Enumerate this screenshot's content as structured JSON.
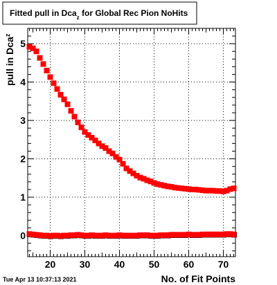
{
  "title": {
    "prefix": "Fitted pull in Dca",
    "subscript": "z",
    "suffix": " for Global Rec Pion NoHits"
  },
  "timestamp": "Tue Apr 13 10:37:13 2021",
  "chart_data": {
    "type": "scatter",
    "title": "Fitted pull in Dca_z for Global Rec Pion NoHits",
    "xlabel": "No. of Fit Points",
    "ylabel": {
      "prefix": "pull in Dca",
      "subscript": "z"
    },
    "xlim": [
      13.5,
      73.5
    ],
    "ylim": [
      -0.55,
      5.4
    ],
    "x_ticks": [
      20,
      30,
      40,
      50,
      60,
      70
    ],
    "y_ticks": [
      0,
      1,
      2,
      3,
      4,
      5
    ],
    "grid": true,
    "colors": {
      "sigma": "#ff0000",
      "mean": "#ff0000",
      "mean_bg": "#000000"
    },
    "series": [
      {
        "x": [
          14,
          15,
          16,
          17,
          18,
          19,
          20,
          21,
          22,
          23,
          24,
          25,
          26,
          27,
          28,
          29,
          30,
          31,
          32,
          33,
          34,
          35,
          36,
          37,
          38,
          39,
          40,
          41,
          42,
          43,
          44,
          45,
          46,
          47,
          48,
          49,
          50,
          51,
          52,
          53,
          54,
          55,
          56,
          57,
          58,
          59,
          60,
          61,
          62,
          63,
          64,
          65,
          66,
          67,
          68,
          69,
          70,
          71,
          72,
          73
        ],
        "values": [
          4.92,
          4.88,
          4.8,
          4.63,
          4.47,
          4.3,
          4.13,
          3.97,
          3.82,
          3.67,
          3.55,
          3.42,
          3.25,
          3.1,
          2.95,
          2.82,
          2.7,
          2.62,
          2.55,
          2.48,
          2.4,
          2.33,
          2.28,
          2.2,
          2.14,
          2.05,
          1.98,
          1.87,
          1.75,
          1.68,
          1.62,
          1.56,
          1.51,
          1.48,
          1.44,
          1.41,
          1.37,
          1.34,
          1.32,
          1.3,
          1.28,
          1.27,
          1.25,
          1.24,
          1.23,
          1.22,
          1.21,
          1.2,
          1.2,
          1.19,
          1.18,
          1.17,
          1.17,
          1.17,
          1.16,
          1.16,
          1.15,
          1.17,
          1.21,
          1.23
        ]
      },
      {
        "x": [
          14,
          15,
          16,
          17,
          18,
          19,
          20,
          21,
          22,
          23,
          24,
          25,
          26,
          27,
          28,
          29,
          30,
          31,
          32,
          33,
          34,
          35,
          36,
          37,
          38,
          39,
          40,
          41,
          42,
          43,
          44,
          45,
          46,
          47,
          48,
          49,
          50,
          51,
          52,
          53,
          54,
          55,
          56,
          57,
          58,
          59,
          60,
          61,
          62,
          63,
          64,
          65,
          66,
          67,
          68,
          69,
          70,
          71,
          72,
          73
        ],
        "values": [
          0.04,
          0.03,
          0.02,
          0.01,
          0.0,
          0.0,
          -0.01,
          0.0,
          0.0,
          -0.01,
          0.0,
          0.0,
          0.01,
          0.01,
          0.02,
          0.01,
          0.0,
          0.0,
          0.01,
          0.0,
          0.0,
          0.0,
          0.01,
          0.0,
          0.0,
          0.0,
          0.01,
          0.0,
          0.0,
          0.0,
          0.0,
          0.0,
          0.01,
          0.01,
          0.01,
          0.0,
          0.0,
          0.0,
          0.01,
          0.01,
          0.01,
          0.02,
          0.02,
          0.02,
          0.02,
          0.02,
          0.03,
          0.02,
          0.02,
          0.02,
          0.03,
          0.03,
          0.03,
          0.03,
          0.03,
          0.03,
          0.03,
          0.04,
          0.04,
          0.03
        ]
      }
    ]
  }
}
